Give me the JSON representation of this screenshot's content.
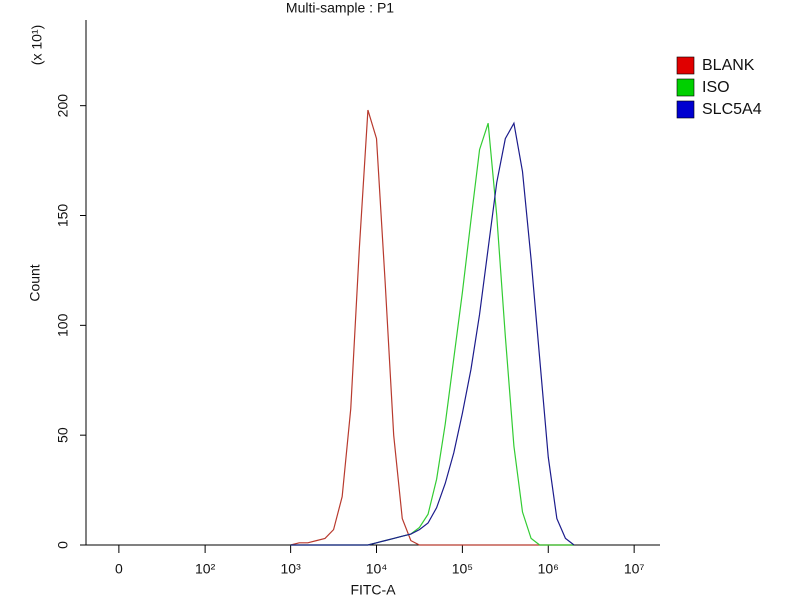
{
  "chart_data": {
    "type": "line",
    "title": "Multi-sample : P1",
    "xlabel": "FITC-A",
    "ylabel": "Count",
    "y_multiplier": "(x 10¹)",
    "xscale": "biexponential",
    "xlim": [
      -20,
      20000000
    ],
    "xticks": [
      0,
      {
        "value": 100,
        "label": "10²"
      },
      {
        "value": 1000,
        "label": "10³"
      },
      {
        "value": 10000,
        "label": "10⁴"
      },
      {
        "value": 100000,
        "label": "10⁵"
      },
      {
        "value": 1000000,
        "label": "10⁶"
      },
      {
        "value": 10000000,
        "label": "10⁷"
      }
    ],
    "ylim": [
      0,
      239
    ],
    "yticks": [
      0,
      50,
      100,
      150,
      200
    ],
    "legend": "right",
    "x": [
      1000,
      1259,
      1585,
      1995,
      2512,
      3162,
      3981,
      5012,
      6310,
      7943,
      10000,
      12589,
      15849,
      19953,
      25119,
      31623,
      39811,
      50119,
      63096,
      79433,
      100000,
      125893,
      158489,
      199526,
      251189,
      316228,
      398107,
      501187,
      630957,
      794328,
      1000000,
      1258925,
      1584893,
      1995262
    ],
    "series": [
      {
        "name": "BLANK",
        "color": "#e00000",
        "line_color": "#b83a2e",
        "values": [
          0,
          1,
          1,
          2,
          3,
          7,
          22,
          62,
          135,
          198,
          185,
          120,
          50,
          12,
          2,
          0,
          0,
          0,
          0,
          0,
          0,
          0,
          0,
          0,
          0,
          0,
          0,
          0,
          0,
          0,
          0,
          0,
          0,
          0
        ]
      },
      {
        "name": "ISO",
        "color": "#00d000",
        "line_color": "#33cc33",
        "values": [
          0,
          0,
          0,
          0,
          0,
          0,
          0,
          0,
          0,
          0,
          1,
          2,
          3,
          4,
          5,
          8,
          14,
          30,
          55,
          85,
          115,
          148,
          180,
          192,
          150,
          95,
          45,
          15,
          3,
          0,
          0,
          0,
          0,
          0
        ]
      },
      {
        "name": "SLC5A4",
        "color": "#0000d0",
        "line_color": "#1c1c8c",
        "values": [
          0,
          0,
          0,
          0,
          0,
          0,
          0,
          0,
          0,
          0,
          1,
          2,
          3,
          4,
          5,
          7,
          10,
          17,
          28,
          42,
          60,
          80,
          105,
          135,
          165,
          185,
          192,
          170,
          130,
          85,
          40,
          12,
          3,
          0
        ]
      }
    ]
  }
}
